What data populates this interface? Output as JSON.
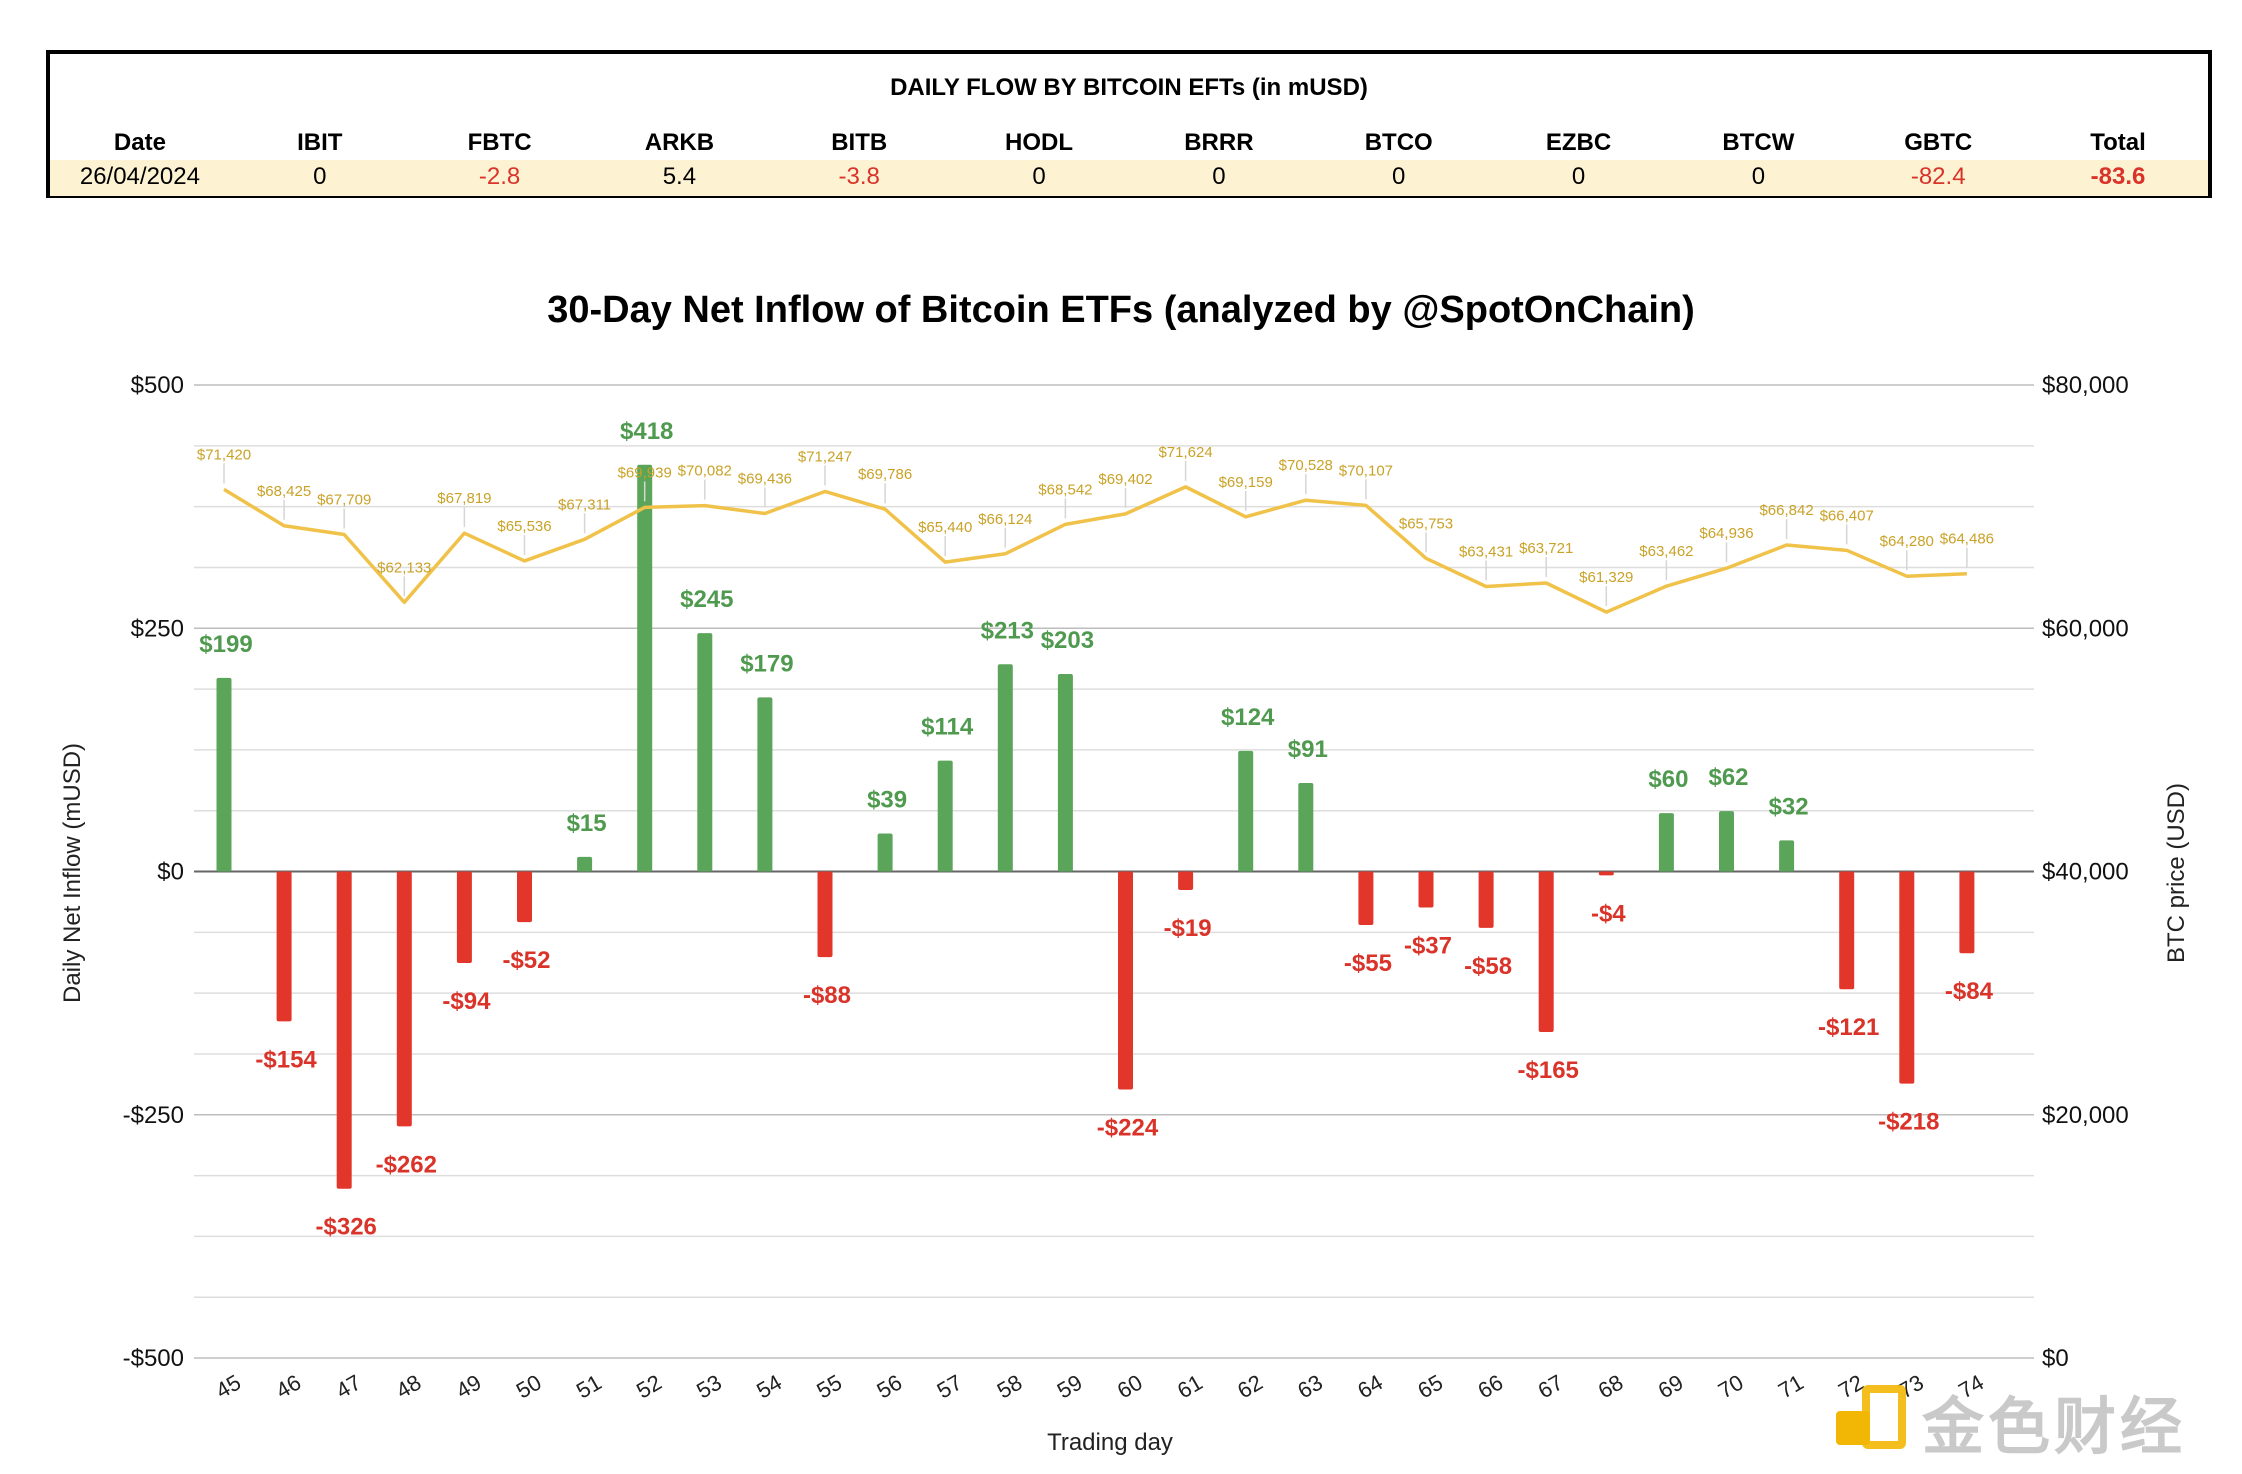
{
  "table": {
    "title": "DAILY FLOW BY BITCOIN EFTs (in mUSD)",
    "headers": [
      "Date",
      "IBIT",
      "FBTC",
      "ARKB",
      "BITB",
      "HODL",
      "BRRR",
      "BTCO",
      "EZBC",
      "BTCW",
      "GBTC",
      "Total"
    ],
    "row": [
      "26/04/2024",
      "0",
      "-2.8",
      "5.4",
      "-3.8",
      "0",
      "0",
      "0",
      "0",
      "0",
      "-82.4",
      "-83.6"
    ]
  },
  "chart_data": {
    "type": "bar",
    "title": "30-Day Net Inflow of Bitcoin ETFs (analyzed by @SpotOnChain)",
    "xlabel": "Trading day",
    "ylabel": "Daily Net Inflow (mUSD)",
    "y2label": "BTC price (USD)",
    "ylim": [
      -500,
      500
    ],
    "y2lim": [
      0,
      80000
    ],
    "yticks": [
      "$500",
      "$250",
      "$0",
      "-$250",
      "-$500"
    ],
    "y2ticks": [
      "$80,000",
      "$60,000",
      "$40,000",
      "$20,000",
      "$0"
    ],
    "categories": [
      "45",
      "46",
      "47",
      "48",
      "49",
      "50",
      "51",
      "52",
      "53",
      "54",
      "55",
      "56",
      "57",
      "58",
      "59",
      "60",
      "61",
      "62",
      "63",
      "64",
      "65",
      "66",
      "67",
      "68",
      "69",
      "70",
      "71",
      "72",
      "73",
      "74"
    ],
    "series": [
      {
        "name": "Daily Net Inflow",
        "type": "bar",
        "values": [
          199,
          -154,
          -326,
          -262,
          -94,
          -52,
          15,
          418,
          245,
          179,
          -88,
          39,
          114,
          213,
          203,
          -224,
          -19,
          124,
          91,
          -55,
          -37,
          -58,
          -165,
          -4,
          60,
          62,
          32,
          -121,
          -218,
          -84
        ],
        "labels": [
          "$199",
          "-$154",
          "-$326",
          "-$262",
          "-$94",
          "-$52",
          "$15",
          "$418",
          "$245",
          "$179",
          "-$88",
          "$39",
          "$114",
          "$213",
          "$203",
          "-$224",
          "-$19",
          "$124",
          "$91",
          "-$55",
          "-$37",
          "-$58",
          "-$165",
          "-$4",
          "$60",
          "$62",
          "$32",
          "-$121",
          "-$218",
          "-$84"
        ]
      },
      {
        "name": "BTC price",
        "type": "line",
        "axis": "right",
        "values": [
          71420,
          68425,
          67709,
          62133,
          67819,
          65536,
          67311,
          69939,
          70082,
          69436,
          71247,
          69786,
          65440,
          66124,
          68542,
          69402,
          71624,
          69159,
          70528,
          70107,
          65753,
          63431,
          63721,
          61329,
          63462,
          64936,
          66842,
          66407,
          64280,
          64486
        ],
        "labels": [
          "$71,420",
          "$68,425",
          "$67,709",
          "$62,133",
          "$67,819",
          "$65,536",
          "$67,311",
          "$69,939",
          "$70,082",
          "$69,436",
          "$71,247",
          "$69,786",
          "$65,440",
          "$66,124",
          "$68,542",
          "$69,402",
          "$71,624",
          "$69,159",
          "$70,528",
          "$70,107",
          "$65,753",
          "$63,431",
          "$63,721",
          "$61,329",
          "$63,462",
          "$64,936",
          "$66,842",
          "$66,407",
          "$64,280",
          "$64,486"
        ]
      }
    ],
    "colors": {
      "positive": "#5aa55a",
      "negative": "#e3362b",
      "positive_label": "#4f9a4f",
      "negative_label": "#d9332a",
      "price_line": "#f0c24a",
      "price_label": "#c9a227"
    }
  },
  "watermark": {
    "text": "金色财经"
  }
}
